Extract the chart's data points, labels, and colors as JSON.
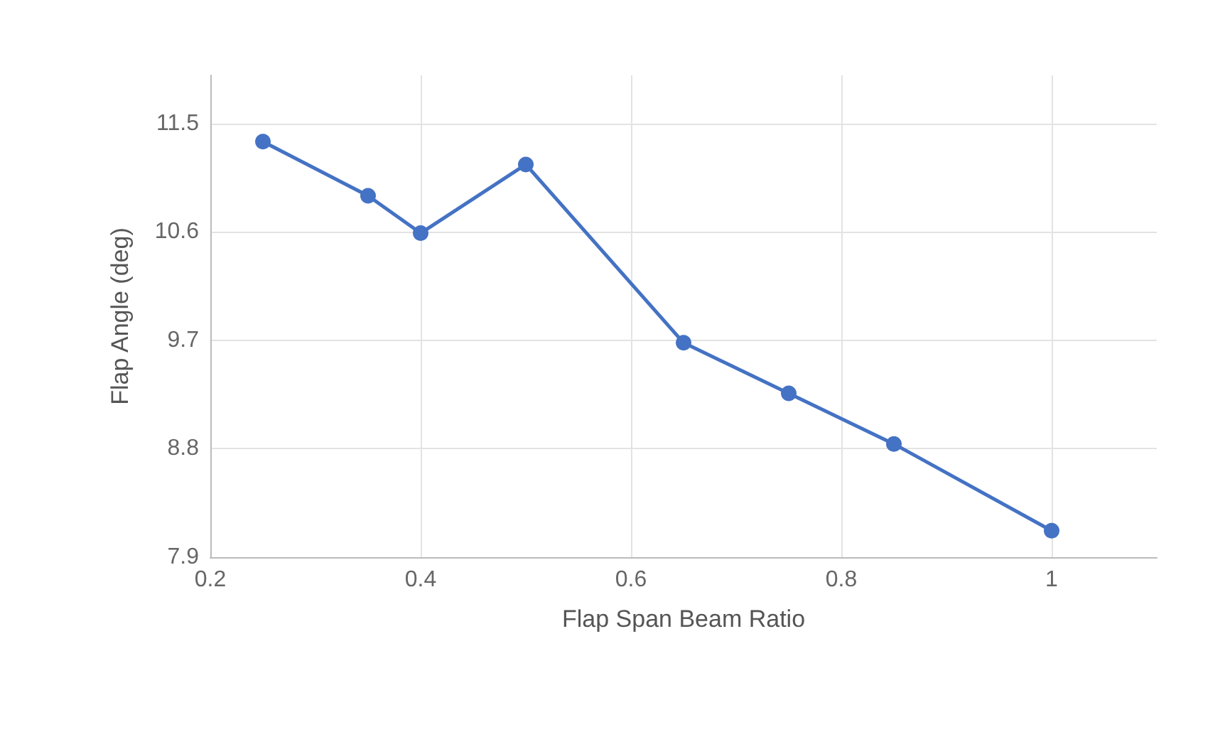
{
  "chart_data": {
    "type": "line",
    "xlabel": "Flap Span Beam Ratio",
    "ylabel": "Flap Angle (deg)",
    "x": [
      0.25,
      0.35,
      0.4,
      0.5,
      0.65,
      0.75,
      0.85,
      1
    ],
    "series": [
      {
        "color": "#4472c4",
        "values": [
          11.35,
          10.9,
          10.59,
          11.16,
          9.68,
          9.26,
          8.84,
          8.12
        ]
      }
    ],
    "xlim": [
      0.2,
      1.1
    ],
    "xticks": [
      0.2,
      0.4,
      0.6,
      0.8,
      1
    ],
    "ylim": [
      7.9,
      11.9
    ],
    "yticks": [
      7.9,
      8.8,
      9.7,
      10.6,
      11.5
    ],
    "grid": true,
    "marker": "circle",
    "line_style": "solid"
  }
}
